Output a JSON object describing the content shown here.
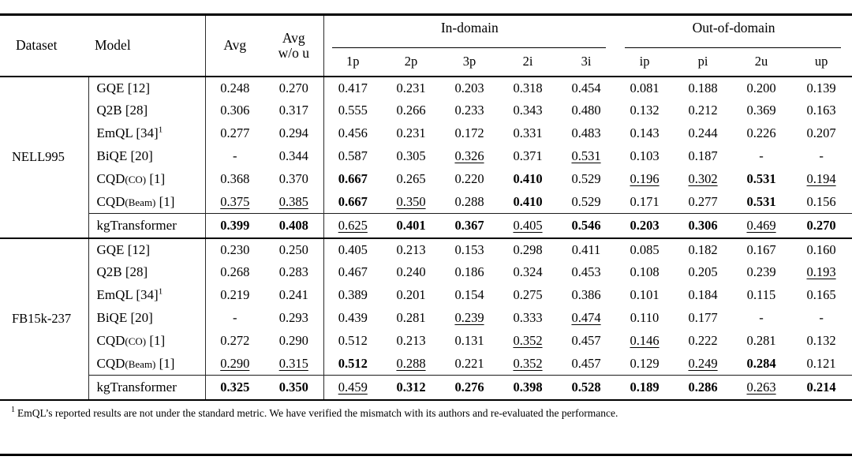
{
  "table": {
    "header": {
      "dataset": "Dataset",
      "model": "Model",
      "avg": "Avg",
      "avg_wo_u": [
        "Avg",
        "w/o u"
      ],
      "in_domain": "In-domain",
      "out_of_domain": "Out-of-domain",
      "sub_columns": [
        "1p",
        "2p",
        "3p",
        "2i",
        "3i",
        "ip",
        "pi",
        "2u",
        "up"
      ]
    },
    "columns": [
      "Avg",
      "Avg w/o u",
      "1p",
      "2p",
      "3p",
      "2i",
      "3i",
      "ip",
      "pi",
      "2u",
      "up"
    ],
    "groups": [
      {
        "dataset": "NELL995",
        "rows": [
          {
            "model": {
              "name": "GQE",
              "sub": "",
              "ref": "[12]",
              "sup": ""
            },
            "cells": [
              {
                "v": "0.248",
                "s": ""
              },
              {
                "v": "0.270",
                "s": ""
              },
              {
                "v": "0.417",
                "s": ""
              },
              {
                "v": "0.231",
                "s": ""
              },
              {
                "v": "0.203",
                "s": ""
              },
              {
                "v": "0.318",
                "s": ""
              },
              {
                "v": "0.454",
                "s": ""
              },
              {
                "v": "0.081",
                "s": ""
              },
              {
                "v": "0.188",
                "s": ""
              },
              {
                "v": "0.200",
                "s": ""
              },
              {
                "v": "0.139",
                "s": ""
              }
            ]
          },
          {
            "model": {
              "name": "Q2B",
              "sub": "",
              "ref": "[28]",
              "sup": ""
            },
            "cells": [
              {
                "v": "0.306",
                "s": ""
              },
              {
                "v": "0.317",
                "s": ""
              },
              {
                "v": "0.555",
                "s": ""
              },
              {
                "v": "0.266",
                "s": ""
              },
              {
                "v": "0.233",
                "s": ""
              },
              {
                "v": "0.343",
                "s": ""
              },
              {
                "v": "0.480",
                "s": ""
              },
              {
                "v": "0.132",
                "s": ""
              },
              {
                "v": "0.212",
                "s": ""
              },
              {
                "v": "0.369",
                "s": ""
              },
              {
                "v": "0.163",
                "s": ""
              }
            ]
          },
          {
            "model": {
              "name": "EmQL",
              "sub": "",
              "ref": "[34]",
              "sup": "1"
            },
            "cells": [
              {
                "v": "0.277",
                "s": ""
              },
              {
                "v": "0.294",
                "s": ""
              },
              {
                "v": "0.456",
                "s": ""
              },
              {
                "v": "0.231",
                "s": ""
              },
              {
                "v": "0.172",
                "s": ""
              },
              {
                "v": "0.331",
                "s": ""
              },
              {
                "v": "0.483",
                "s": ""
              },
              {
                "v": "0.143",
                "s": ""
              },
              {
                "v": "0.244",
                "s": ""
              },
              {
                "v": "0.226",
                "s": ""
              },
              {
                "v": "0.207",
                "s": ""
              }
            ]
          },
          {
            "model": {
              "name": "BiQE",
              "sub": "",
              "ref": "[20]",
              "sup": ""
            },
            "cells": [
              {
                "v": "-",
                "s": ""
              },
              {
                "v": "0.344",
                "s": ""
              },
              {
                "v": "0.587",
                "s": ""
              },
              {
                "v": "0.305",
                "s": ""
              },
              {
                "v": "0.326",
                "s": "u"
              },
              {
                "v": "0.371",
                "s": ""
              },
              {
                "v": "0.531",
                "s": "u"
              },
              {
                "v": "0.103",
                "s": ""
              },
              {
                "v": "0.187",
                "s": ""
              },
              {
                "v": "-",
                "s": ""
              },
              {
                "v": "-",
                "s": ""
              }
            ]
          },
          {
            "model": {
              "name": "CQD",
              "sub": "(CO)",
              "ref": "[1]",
              "sup": ""
            },
            "cells": [
              {
                "v": "0.368",
                "s": ""
              },
              {
                "v": "0.370",
                "s": ""
              },
              {
                "v": "0.667",
                "s": "b"
              },
              {
                "v": "0.265",
                "s": ""
              },
              {
                "v": "0.220",
                "s": ""
              },
              {
                "v": "0.410",
                "s": "b"
              },
              {
                "v": "0.529",
                "s": ""
              },
              {
                "v": "0.196",
                "s": "u"
              },
              {
                "v": "0.302",
                "s": "u"
              },
              {
                "v": "0.531",
                "s": "b"
              },
              {
                "v": "0.194",
                "s": "u"
              }
            ]
          },
          {
            "model": {
              "name": "CQD",
              "sub": "(Beam)",
              "ref": "[1]",
              "sup": ""
            },
            "cells": [
              {
                "v": "0.375",
                "s": "u"
              },
              {
                "v": "0.385",
                "s": "u"
              },
              {
                "v": "0.667",
                "s": "b"
              },
              {
                "v": "0.350",
                "s": "u"
              },
              {
                "v": "0.288",
                "s": ""
              },
              {
                "v": "0.410",
                "s": "b"
              },
              {
                "v": "0.529",
                "s": ""
              },
              {
                "v": "0.171",
                "s": ""
              },
              {
                "v": "0.277",
                "s": ""
              },
              {
                "v": "0.531",
                "s": "b"
              },
              {
                "v": "0.156",
                "s": ""
              }
            ]
          }
        ],
        "highlight_row": {
          "model": {
            "name": "kgTransformer",
            "sub": "",
            "ref": "",
            "sup": ""
          },
          "cells": [
            {
              "v": "0.399",
              "s": "b"
            },
            {
              "v": "0.408",
              "s": "b"
            },
            {
              "v": "0.625",
              "s": "u"
            },
            {
              "v": "0.401",
              "s": "b"
            },
            {
              "v": "0.367",
              "s": "b"
            },
            {
              "v": "0.405",
              "s": "u"
            },
            {
              "v": "0.546",
              "s": "b"
            },
            {
              "v": "0.203",
              "s": "b"
            },
            {
              "v": "0.306",
              "s": "b"
            },
            {
              "v": "0.469",
              "s": "u"
            },
            {
              "v": "0.270",
              "s": "b"
            }
          ]
        }
      },
      {
        "dataset": "FB15k-237",
        "rows": [
          {
            "model": {
              "name": "GQE",
              "sub": "",
              "ref": "[12]",
              "sup": ""
            },
            "cells": [
              {
                "v": "0.230",
                "s": ""
              },
              {
                "v": "0.250",
                "s": ""
              },
              {
                "v": "0.405",
                "s": ""
              },
              {
                "v": "0.213",
                "s": ""
              },
              {
                "v": "0.153",
                "s": ""
              },
              {
                "v": "0.298",
                "s": ""
              },
              {
                "v": "0.411",
                "s": ""
              },
              {
                "v": "0.085",
                "s": ""
              },
              {
                "v": "0.182",
                "s": ""
              },
              {
                "v": "0.167",
                "s": ""
              },
              {
                "v": "0.160",
                "s": ""
              }
            ]
          },
          {
            "model": {
              "name": "Q2B",
              "sub": "",
              "ref": "[28]",
              "sup": ""
            },
            "cells": [
              {
                "v": "0.268",
                "s": ""
              },
              {
                "v": "0.283",
                "s": ""
              },
              {
                "v": "0.467",
                "s": ""
              },
              {
                "v": "0.240",
                "s": ""
              },
              {
                "v": "0.186",
                "s": ""
              },
              {
                "v": "0.324",
                "s": ""
              },
              {
                "v": "0.453",
                "s": ""
              },
              {
                "v": "0.108",
                "s": ""
              },
              {
                "v": "0.205",
                "s": ""
              },
              {
                "v": "0.239",
                "s": ""
              },
              {
                "v": "0.193",
                "s": "u"
              }
            ]
          },
          {
            "model": {
              "name": "EmQL",
              "sub": "",
              "ref": "[34]",
              "sup": "1"
            },
            "cells": [
              {
                "v": "0.219",
                "s": ""
              },
              {
                "v": "0.241",
                "s": ""
              },
              {
                "v": "0.389",
                "s": ""
              },
              {
                "v": "0.201",
                "s": ""
              },
              {
                "v": "0.154",
                "s": ""
              },
              {
                "v": "0.275",
                "s": ""
              },
              {
                "v": "0.386",
                "s": ""
              },
              {
                "v": "0.101",
                "s": ""
              },
              {
                "v": "0.184",
                "s": ""
              },
              {
                "v": "0.115",
                "s": ""
              },
              {
                "v": "0.165",
                "s": ""
              }
            ]
          },
          {
            "model": {
              "name": "BiQE",
              "sub": "",
              "ref": "[20]",
              "sup": ""
            },
            "cells": [
              {
                "v": "-",
                "s": ""
              },
              {
                "v": "0.293",
                "s": ""
              },
              {
                "v": "0.439",
                "s": ""
              },
              {
                "v": "0.281",
                "s": ""
              },
              {
                "v": "0.239",
                "s": "u"
              },
              {
                "v": "0.333",
                "s": ""
              },
              {
                "v": "0.474",
                "s": "u"
              },
              {
                "v": "0.110",
                "s": ""
              },
              {
                "v": "0.177",
                "s": ""
              },
              {
                "v": "-",
                "s": ""
              },
              {
                "v": "-",
                "s": ""
              }
            ]
          },
          {
            "model": {
              "name": "CQD",
              "sub": "(CO)",
              "ref": "[1]",
              "sup": ""
            },
            "cells": [
              {
                "v": "0.272",
                "s": ""
              },
              {
                "v": "0.290",
                "s": ""
              },
              {
                "v": "0.512",
                "s": ""
              },
              {
                "v": "0.213",
                "s": ""
              },
              {
                "v": "0.131",
                "s": ""
              },
              {
                "v": "0.352",
                "s": "u"
              },
              {
                "v": "0.457",
                "s": ""
              },
              {
                "v": "0.146",
                "s": "u"
              },
              {
                "v": "0.222",
                "s": ""
              },
              {
                "v": "0.281",
                "s": ""
              },
              {
                "v": "0.132",
                "s": ""
              }
            ]
          },
          {
            "model": {
              "name": "CQD",
              "sub": "(Beam)",
              "ref": "[1]",
              "sup": ""
            },
            "cells": [
              {
                "v": "0.290",
                "s": "u"
              },
              {
                "v": "0.315",
                "s": "u"
              },
              {
                "v": "0.512",
                "s": "b"
              },
              {
                "v": "0.288",
                "s": "u"
              },
              {
                "v": "0.221",
                "s": ""
              },
              {
                "v": "0.352",
                "s": "u"
              },
              {
                "v": "0.457",
                "s": ""
              },
              {
                "v": "0.129",
                "s": ""
              },
              {
                "v": "0.249",
                "s": "u"
              },
              {
                "v": "0.284",
                "s": "b"
              },
              {
                "v": "0.121",
                "s": ""
              }
            ]
          }
        ],
        "highlight_row": {
          "model": {
            "name": "kgTransformer",
            "sub": "",
            "ref": "",
            "sup": ""
          },
          "cells": [
            {
              "v": "0.325",
              "s": "b"
            },
            {
              "v": "0.350",
              "s": "b"
            },
            {
              "v": "0.459",
              "s": "u"
            },
            {
              "v": "0.312",
              "s": "b"
            },
            {
              "v": "0.276",
              "s": "b"
            },
            {
              "v": "0.398",
              "s": "b"
            },
            {
              "v": "0.528",
              "s": "b"
            },
            {
              "v": "0.189",
              "s": "b"
            },
            {
              "v": "0.286",
              "s": "b"
            },
            {
              "v": "0.263",
              "s": "u"
            },
            {
              "v": "0.214",
              "s": "b"
            }
          ]
        }
      }
    ]
  },
  "footnote": {
    "marker": "1",
    "text": "EmQL’s reported results are not under the standard metric. We have verified the mismatch with its authors and re-evaluated the performance."
  }
}
